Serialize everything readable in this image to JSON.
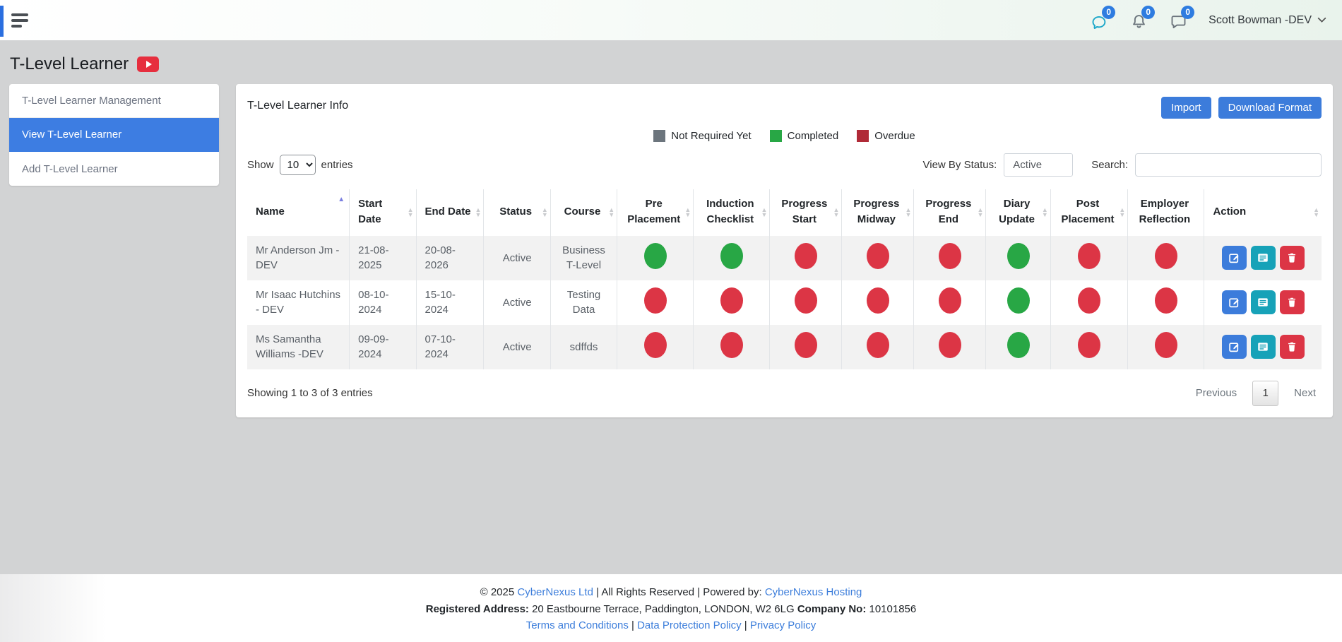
{
  "topbar": {
    "badges": [
      {
        "icon": "chat-bubble-icon",
        "count": "0"
      },
      {
        "icon": "bell-icon",
        "count": "0"
      },
      {
        "icon": "message-square-icon",
        "count": "0"
      }
    ],
    "user_name": "Scott Bowman -DEV"
  },
  "page": {
    "title": "T-Level Learner"
  },
  "sidebar": {
    "items": [
      {
        "label": "T-Level Learner Management",
        "active": false
      },
      {
        "label": "View T-Level Learner",
        "active": true
      },
      {
        "label": "Add T-Level Learner",
        "active": false
      }
    ]
  },
  "panel": {
    "title": "T-Level Learner Info",
    "buttons": {
      "import": "Import",
      "download": "Download Format"
    },
    "legend": [
      {
        "label": "Not Required Yet",
        "color": "#6c757d"
      },
      {
        "label": "Completed",
        "color": "#28a745"
      },
      {
        "label": "Overdue",
        "color": "#b02a37"
      }
    ],
    "controls": {
      "show_label": "Show",
      "show_value": "10",
      "entries_label": "entries",
      "view_by_status_label": "View By Status:",
      "view_by_status_value": "Active",
      "search_label": "Search:",
      "search_value": ""
    },
    "table": {
      "columns": [
        {
          "label": "Name",
          "sort": "asc",
          "align": "left"
        },
        {
          "label": "Start Date",
          "sort": "updown",
          "align": "left"
        },
        {
          "label": "End Date",
          "sort": "updown",
          "align": "left"
        },
        {
          "label": "Status",
          "sort": "updown",
          "align": "center"
        },
        {
          "label": "Course",
          "sort": "updown",
          "align": "center"
        },
        {
          "label": "Pre Placement",
          "sort": "updown",
          "align": "center"
        },
        {
          "label": "Induction Checklist",
          "sort": "updown",
          "align": "center"
        },
        {
          "label": "Progress Start",
          "sort": "updown",
          "align": "center"
        },
        {
          "label": "Progress Midway",
          "sort": "updown",
          "align": "center"
        },
        {
          "label": "Progress End",
          "sort": "updown",
          "align": "center"
        },
        {
          "label": "Diary Update",
          "sort": "updown",
          "align": "center"
        },
        {
          "label": "Post Placement",
          "sort": "updown",
          "align": "center"
        },
        {
          "label": "Employer Reflection",
          "sort": "none",
          "align": "center"
        },
        {
          "label": "Action",
          "sort": "updown",
          "align": "left"
        }
      ],
      "rows": [
        {
          "name": "Mr Anderson Jm - DEV",
          "start_date": "21-08-2025",
          "end_date": "20-08-2026",
          "status": "Active",
          "course": "Business T-Level",
          "indicators": [
            "completed",
            "completed",
            "overdue",
            "overdue",
            "overdue",
            "completed",
            "overdue",
            "overdue"
          ]
        },
        {
          "name": "Mr Isaac Hutchins - DEV",
          "start_date": "08-10-2024",
          "end_date": "15-10-2024",
          "status": "Active",
          "course": "Testing Data",
          "indicators": [
            "overdue",
            "overdue",
            "overdue",
            "overdue",
            "overdue",
            "completed",
            "overdue",
            "overdue"
          ]
        },
        {
          "name": "Ms Samantha Williams -DEV",
          "start_date": "09-09-2024",
          "end_date": "07-10-2024",
          "status": "Active",
          "course": "sdffds",
          "indicators": [
            "overdue",
            "overdue",
            "overdue",
            "overdue",
            "overdue",
            "completed",
            "overdue",
            "overdue"
          ]
        }
      ]
    },
    "pagination": {
      "summary": "Showing 1 to 3 of 3 entries",
      "previous": "Previous",
      "page": "1",
      "next": "Next"
    }
  },
  "footer": {
    "line1": [
      {
        "text": "© 2025 "
      },
      {
        "text": "CyberNexus Ltd",
        "link": true
      },
      {
        "text": " | All Rights Reserved | Powered by: "
      },
      {
        "text": "CyberNexus Hosting",
        "link": true
      }
    ],
    "line2": [
      {
        "text": "Registered Address:",
        "bold": true
      },
      {
        "text": " 20 Eastbourne Terrace, Paddington, LONDON, W2 6LG "
      },
      {
        "text": "Company No:",
        "bold": true
      },
      {
        "text": " 10101856"
      }
    ],
    "line3": [
      {
        "text": "Terms and Conditions",
        "link": true
      },
      {
        "text": " | "
      },
      {
        "text": "Data Protection Policy",
        "link": true
      },
      {
        "text": " | "
      },
      {
        "text": "Privacy Policy",
        "link": true
      }
    ]
  },
  "colors": {
    "primary_blue": "#3c7cdb",
    "sidebar_active": "#3d7de2",
    "completed": "#28a745",
    "overdue": "#dc3545",
    "not_required_yet": "#6c757d",
    "legend_overdue": "#b02a37",
    "info_teal": "#17a2b8",
    "badge_blue": "#2e7ce0",
    "link_blue": "#3d7edb",
    "youtube_red": "#e62e3e"
  }
}
